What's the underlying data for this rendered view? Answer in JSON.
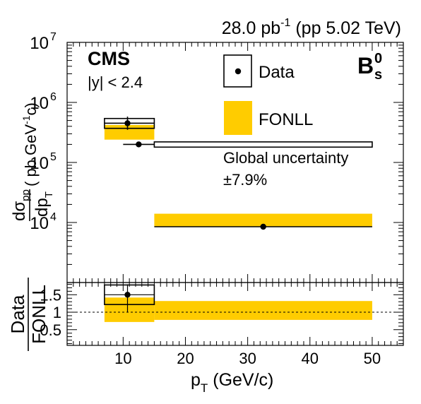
{
  "header": {
    "lumi_value": "28.0 pb",
    "lumi_exp": "-1",
    "lumi_rest": " (pp 5.02 TeV)"
  },
  "labels": {
    "cms": "CMS",
    "rapidity": "|y| < 2.4",
    "particle": "B",
    "particle_sup": "0",
    "particle_sub": "s",
    "global_unc_line1": "Global uncertainty",
    "global_unc_line2": "±7.9%"
  },
  "colors": {
    "fonll_fill": "#ffcc00",
    "axis": "#000000",
    "data_box_fill": "#ffffff"
  },
  "chart_data": [
    {
      "type": "scatter",
      "panel": "top",
      "x_scale": "linear",
      "y_scale": "log",
      "xlim": [
        1,
        55
      ],
      "ylim": [
        1000,
        10000000
      ],
      "ylabel_num": "dσ",
      "ylabel_num_sub": "pp",
      "ylabel_den": "dp",
      "ylabel_den_sub": "T",
      "ylabel_unit_pre": "( pb GeV",
      "ylabel_unit_exp": "-1",
      "ylabel_unit_post": "c)",
      "yticks": [
        {
          "value": 10000,
          "base": "10",
          "exp": "4"
        },
        {
          "value": 100000,
          "base": "10",
          "exp": "5"
        },
        {
          "value": 1000000,
          "base": "10",
          "exp": "6"
        },
        {
          "value": 10000000,
          "base": "10",
          "exp": "7"
        }
      ],
      "legend": [
        {
          "name": "Data",
          "symbol": "box-marker"
        },
        {
          "name": "FONLL",
          "symbol": "filled-box"
        }
      ],
      "fonll": [
        {
          "x_low": 7,
          "x_high": 15,
          "y_low": 240000,
          "y_high": 420000
        },
        {
          "x_low": 15,
          "x_high": 50,
          "y_low": 8500,
          "y_high": 14000
        }
      ],
      "data_boxes": [
        {
          "x_low": 7,
          "x_high": 15,
          "y_low": 370000,
          "y_high": 540000
        },
        {
          "x_low": 15,
          "x_high": 50,
          "y_low": 180000,
          "y_high": 220000
        }
      ],
      "points": [
        {
          "x": 10.7,
          "y": 450000,
          "x_err_low": 3.7,
          "x_err_high": 4.3,
          "y_err_low": 100000,
          "y_err_high": 130000
        },
        {
          "x": 12.5,
          "y": 200000,
          "x_err_low": 2.5,
          "x_err_high": 2.5,
          "y_err_low": 10000,
          "y_err_high": 10000
        },
        {
          "x": 32.5,
          "y": 8500,
          "x_err_low": 17.5,
          "x_err_high": 17.5,
          "y_err_low": 300,
          "y_err_high": 300
        }
      ]
    },
    {
      "type": "scatter",
      "panel": "ratio",
      "x_scale": "linear",
      "y_scale": "linear",
      "xlim": [
        1,
        55
      ],
      "ylim": [
        0.05,
        1.85
      ],
      "xlabel": "p",
      "xlabel_sub": "T",
      "xlabel_unit": " (GeV/c)",
      "ylabel_num": "Data",
      "ylabel_den": "FONLL",
      "xticks": [
        10,
        20,
        30,
        40,
        50
      ],
      "yticks": [
        0.5,
        1,
        1.5
      ],
      "ytick_labels": [
        "0.5",
        "1",
        "1.5"
      ],
      "reference_line": 1,
      "fonll": [
        {
          "x_low": 7,
          "x_high": 15,
          "y_low": 0.72,
          "y_high": 1.42
        },
        {
          "x_low": 15,
          "x_high": 50,
          "y_low": 0.78,
          "y_high": 1.32
        }
      ],
      "data_boxes": [
        {
          "x_low": 7,
          "x_high": 15,
          "y_low": 1.22,
          "y_high": 1.78
        }
      ],
      "points": [
        {
          "x": 10.7,
          "y": 1.5,
          "x_err_low": 3.7,
          "x_err_high": 4.3,
          "y_err_low": 0.5,
          "y_err_high": 0.3
        }
      ]
    }
  ]
}
